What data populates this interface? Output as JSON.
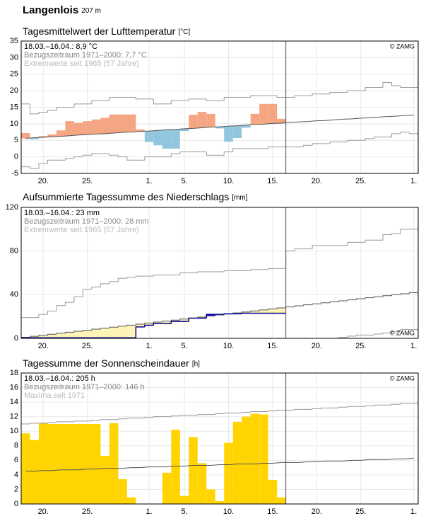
{
  "header": {
    "title": "Langenlois",
    "elevation": "207 m"
  },
  "chart_data": [
    {
      "type": "anomaly",
      "title": "Tagesmittelwert der Lufttemperatur",
      "unit": "[°C]",
      "notes": [
        "18.03.–16.04.: 8,9 °C",
        "Bezugszeitraum 1971–2000: 7,7 °C",
        "Extremwerte seit 1965 (57 Jahre)"
      ],
      "copyright": "© ZAMG",
      "copyright_corner": "top-right",
      "color_above": "#f4a582",
      "color_below": "#92c5de",
      "grid": true,
      "xlim": [
        0,
        45
      ],
      "xticks": [
        {
          "value": 2.5,
          "label": "20."
        },
        {
          "value": 7.5,
          "label": "25."
        },
        {
          "value": 14.5,
          "label": "1."
        },
        {
          "value": 18.5,
          "label": "5."
        },
        {
          "value": 23.5,
          "label": "10."
        },
        {
          "value": 28.5,
          "label": "15."
        },
        {
          "value": 33.5,
          "label": "20."
        },
        {
          "value": 38.5,
          "label": "25."
        },
        {
          "value": 44.5,
          "label": "1."
        }
      ],
      "ylim": [
        -5,
        35
      ],
      "yticks": [
        -5,
        0,
        5,
        10,
        15,
        20,
        25,
        30,
        35
      ],
      "values": [
        7.2,
        5.3,
        6.3,
        6.8,
        8,
        10.8,
        10.3,
        10.8,
        11.3,
        11.8,
        12.8,
        12.8,
        12.8,
        8.3,
        4.5,
        3.5,
        2.5,
        2.5,
        7.8,
        12.7,
        13.6,
        13,
        8.6,
        4.6,
        5.7,
        8.8,
        13,
        16,
        16,
        11.5
      ],
      "normal": [
        5.6,
        5.8,
        5.9,
        6.1,
        6.2,
        6.4,
        6.6,
        6.7,
        6.9,
        7.0,
        7.2,
        7.4,
        7.5,
        7.7,
        7.8,
        8.0,
        8.2,
        8.3,
        8.5,
        8.6,
        8.8,
        9.0,
        9.1,
        9.3,
        9.4,
        9.6,
        9.8,
        9.9,
        10.1,
        10.2,
        10.4,
        10.6,
        10.7,
        10.9,
        11.0,
        11.2,
        11.4,
        11.5,
        11.7,
        11.8,
        12.0,
        12.2,
        12.3,
        12.5,
        12.6
      ],
      "extreme_max": [
        16,
        13,
        13.5,
        14,
        15,
        15,
        16,
        16,
        17,
        17,
        18,
        18,
        18,
        17.5,
        17.5,
        16,
        16,
        17,
        17,
        17.5,
        17.5,
        17,
        17,
        18,
        18,
        18,
        18.5,
        18.5,
        18.5,
        18,
        18,
        18.5,
        18.5,
        19,
        19,
        19.5,
        19.5,
        20,
        20,
        21,
        21,
        22.5,
        21.5,
        21,
        21
      ],
      "extreme_min": [
        -3,
        -3.5,
        -2,
        -1,
        -1,
        -0.5,
        0,
        0.5,
        1,
        1,
        0.5,
        0,
        -1,
        -1,
        0,
        0,
        0,
        1,
        1.5,
        1.5,
        1.5,
        0.5,
        0.5,
        1.5,
        2.5,
        2.5,
        2.5,
        2.5,
        3,
        3,
        3,
        3,
        3.5,
        4,
        4,
        4.5,
        4.5,
        5,
        5,
        5.5,
        6,
        6,
        7,
        7.5,
        7
      ]
    },
    {
      "type": "area",
      "title": "Aufsummierte Tagessumme des Niederschlags",
      "unit": "[mm]",
      "notes": [
        "18.03.–16.04.: 23 mm",
        "Bezugszeitraum 1971–2000: 28 mm",
        "Extremwerte seit 1965 (57 Jahre)"
      ],
      "copyright": "© ZAMG",
      "copyright_corner": "bottom-right",
      "color_above": "#0000ff",
      "color_below": "#fff4b8",
      "line_color": "#00008b",
      "grid": true,
      "xlim": [
        0,
        45
      ],
      "xticks": [
        {
          "value": 2.5,
          "label": "20."
        },
        {
          "value": 7.5,
          "label": "25."
        },
        {
          "value": 14.5,
          "label": "1."
        },
        {
          "value": 18.5,
          "label": "5."
        },
        {
          "value": 23.5,
          "label": "10."
        },
        {
          "value": 28.5,
          "label": "15."
        },
        {
          "value": 33.5,
          "label": "20."
        },
        {
          "value": 38.5,
          "label": "25."
        },
        {
          "value": 44.5,
          "label": "1."
        }
      ],
      "ylim": [
        0,
        120
      ],
      "yticks": [
        0,
        40,
        80,
        120
      ],
      "values": [
        0.5,
        0.5,
        0.5,
        0.5,
        0.5,
        0.5,
        0.5,
        0.5,
        0.5,
        0.5,
        0.5,
        0.5,
        0.5,
        10.5,
        12,
        13.5,
        13.5,
        15.5,
        15.5,
        18.5,
        18.5,
        22,
        22,
        22.5,
        22.5,
        23,
        23,
        23,
        23,
        23
      ],
      "normal": [
        0.9,
        1.9,
        2.8,
        3.7,
        4.7,
        5.6,
        6.5,
        7.4,
        8.4,
        9.3,
        10.2,
        11.2,
        12.1,
        13.0,
        14.0,
        14.9,
        15.8,
        16.7,
        17.7,
        18.6,
        19.5,
        20.5,
        21.4,
        22.3,
        23.3,
        24.2,
        25.1,
        26.0,
        27.0,
        27.9,
        28.8,
        29.8,
        30.7,
        31.6,
        32.6,
        33.5,
        34.4,
        35.3,
        36.3,
        37.2,
        38.1,
        39.1,
        40.0,
        40.9,
        41.9
      ],
      "extreme_max": [
        19,
        19,
        22,
        25,
        30,
        33,
        38,
        45,
        47,
        50,
        52,
        55,
        56,
        57,
        57,
        58,
        58,
        58,
        60,
        60,
        61,
        61,
        61,
        62,
        62,
        62,
        63,
        63,
        64,
        64,
        80,
        82,
        82,
        85,
        85,
        85,
        85,
        88,
        88,
        90,
        90,
        95,
        96,
        100,
        100
      ],
      "extreme_min": [
        0,
        0,
        0,
        0,
        0,
        0,
        0,
        0,
        0,
        0,
        0,
        0,
        0,
        0,
        0,
        0,
        0,
        0,
        0,
        0,
        0,
        0,
        0,
        0,
        0,
        0,
        0,
        0,
        0,
        0,
        0,
        0,
        0,
        0,
        0,
        0,
        1,
        2,
        3,
        3,
        4,
        5,
        6,
        8,
        8
      ]
    },
    {
      "type": "bar",
      "title": "Tagessumme der Sonnenscheindauer",
      "unit": "[h]",
      "notes": [
        "18.03.–16.04.: 205 h",
        "Bezugszeitraum 1971–2000: 146 h",
        "Maxima seit 1971"
      ],
      "copyright": "© ZAMG",
      "copyright_corner": "top-right",
      "color": "#ffd400",
      "grid": true,
      "xlim": [
        0,
        45
      ],
      "xticks": [
        {
          "value": 2.5,
          "label": "20."
        },
        {
          "value": 7.5,
          "label": "25."
        },
        {
          "value": 14.5,
          "label": "1."
        },
        {
          "value": 18.5,
          "label": "5."
        },
        {
          "value": 23.5,
          "label": "10."
        },
        {
          "value": 28.5,
          "label": "15."
        },
        {
          "value": 33.5,
          "label": "20."
        },
        {
          "value": 38.5,
          "label": "25."
        },
        {
          "value": 44.5,
          "label": "1."
        }
      ],
      "ylim": [
        0,
        18
      ],
      "yticks": [
        0,
        2,
        4,
        6,
        8,
        10,
        12,
        14,
        16,
        18
      ],
      "values": [
        9.7,
        8.8,
        11.1,
        11,
        11,
        11,
        11,
        11,
        11,
        6.6,
        11.1,
        3.4,
        0.9,
        0,
        0,
        0,
        4.3,
        10.2,
        1.1,
        9.2,
        5.6,
        2,
        0.4,
        8.4,
        11.3,
        12,
        12.4,
        12.3,
        3.3,
        0.9
      ],
      "normal": [
        4.5,
        4.5,
        4.6,
        4.6,
        4.7,
        4.7,
        4.7,
        4.8,
        4.8,
        4.9,
        4.9,
        4.9,
        5.0,
        5.0,
        5.1,
        5.1,
        5.1,
        5.2,
        5.2,
        5.3,
        5.3,
        5.3,
        5.4,
        5.4,
        5.5,
        5.5,
        5.5,
        5.6,
        5.6,
        5.7,
        5.7,
        5.7,
        5.8,
        5.8,
        5.9,
        5.9,
        5.9,
        6.0,
        6.0,
        6.1,
        6.1,
        6.1,
        6.2,
        6.2,
        6.3
      ],
      "extreme_max": [
        11.0,
        11.1,
        11.1,
        11.2,
        11.3,
        11.3,
        11.4,
        11.4,
        11.5,
        11.6,
        11.6,
        11.7,
        11.8,
        11.8,
        11.9,
        12.0,
        12.0,
        12.1,
        12.2,
        12.2,
        12.3,
        12.3,
        12.4,
        12.5,
        12.5,
        12.6,
        12.7,
        12.7,
        12.8,
        12.9,
        12.9,
        13.0,
        13.0,
        13.1,
        13.2,
        13.2,
        13.3,
        13.4,
        13.4,
        13.5,
        13.6,
        13.6,
        13.7,
        13.8,
        13.8
      ]
    }
  ]
}
